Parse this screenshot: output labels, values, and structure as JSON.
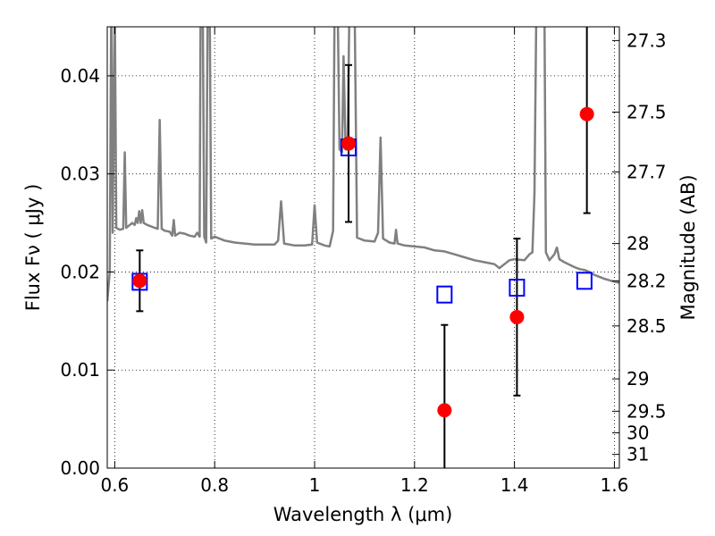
{
  "chart_data": {
    "type": "scatter",
    "xlabel": "Wavelength  λ (μm)",
    "ylabel": "Flux  Fν  ( μJy )",
    "y2label": "Magnitude (AB)",
    "xlim": [
      0.585,
      1.61
    ],
    "ylim": [
      0.0,
      0.045
    ],
    "grid": true,
    "x_ticks": [
      0.6,
      0.8,
      1.0,
      1.2,
      1.4,
      1.6
    ],
    "x_tick_labels": [
      "0.6",
      "0.8",
      "1",
      "1.2",
      "1.4",
      "1.6"
    ],
    "y_ticks": [
      0.0,
      0.01,
      0.02,
      0.03,
      0.04
    ],
    "y_tick_labels": [
      "0.00",
      "0.01",
      "0.02",
      "0.03",
      "0.04"
    ],
    "mag_ticks": [
      {
        "label": "27.3",
        "flux": 0.0436
      },
      {
        "label": "27.5",
        "flux": 0.0363
      },
      {
        "label": "27.7",
        "flux": 0.0302
      },
      {
        "label": "28",
        "flux": 0.0229
      },
      {
        "label": "28.2",
        "flux": 0.0191
      },
      {
        "label": "28.5",
        "flux": 0.0145
      },
      {
        "label": "29",
        "flux": 0.0091
      },
      {
        "label": "29.5",
        "flux": 0.0058
      },
      {
        "label": "30",
        "flux": 0.0036
      },
      {
        "label": "31",
        "flux": 0.0014
      }
    ],
    "observed": {
      "color": "#ff0000",
      "points": [
        {
          "x": 0.65,
          "y": 0.0191,
          "err": 0.0031
        },
        {
          "x": 1.068,
          "y": 0.0331,
          "err": 0.008
        },
        {
          "x": 1.26,
          "y": 0.0059,
          "err": 0.0087
        },
        {
          "x": 1.405,
          "y": 0.0154,
          "err": 0.008
        },
        {
          "x": 1.545,
          "y": 0.0361,
          "err": 0.0101
        }
      ]
    },
    "model_photometry": {
      "color": "#0000ff",
      "points": [
        {
          "x": 0.65,
          "y": 0.019
        },
        {
          "x": 1.068,
          "y": 0.0327
        },
        {
          "x": 1.26,
          "y": 0.0177
        },
        {
          "x": 1.405,
          "y": 0.0184
        },
        {
          "x": 1.54,
          "y": 0.0191
        }
      ]
    },
    "spectrum": {
      "color": "#808080",
      "points": [
        [
          0.585,
          0.017
        ],
        [
          0.59,
          0.02
        ],
        [
          0.593,
          0.048
        ],
        [
          0.596,
          0.024
        ],
        [
          0.6,
          0.048
        ],
        [
          0.603,
          0.0245
        ],
        [
          0.61,
          0.0243
        ],
        [
          0.617,
          0.0244
        ],
        [
          0.62,
          0.0322
        ],
        [
          0.623,
          0.0245
        ],
        [
          0.63,
          0.0248
        ],
        [
          0.635,
          0.025
        ],
        [
          0.64,
          0.0248
        ],
        [
          0.643,
          0.0255
        ],
        [
          0.646,
          0.025
        ],
        [
          0.649,
          0.0262
        ],
        [
          0.652,
          0.025
        ],
        [
          0.655,
          0.0263
        ],
        [
          0.658,
          0.025
        ],
        [
          0.665,
          0.0248
        ],
        [
          0.68,
          0.0245
        ],
        [
          0.686,
          0.0244
        ],
        [
          0.69,
          0.0355
        ],
        [
          0.694,
          0.0244
        ],
        [
          0.7,
          0.0242
        ],
        [
          0.71,
          0.0241
        ],
        [
          0.715,
          0.0237
        ],
        [
          0.718,
          0.0253
        ],
        [
          0.721,
          0.0237
        ],
        [
          0.73,
          0.024
        ],
        [
          0.74,
          0.0239
        ],
        [
          0.75,
          0.0237
        ],
        [
          0.76,
          0.0236
        ],
        [
          0.765,
          0.024
        ],
        [
          0.77,
          0.0236
        ],
        [
          0.772,
          0.048
        ],
        [
          0.776,
          0.048
        ],
        [
          0.779,
          0.0236
        ],
        [
          0.783,
          0.023
        ],
        [
          0.786,
          0.048
        ],
        [
          0.79,
          0.048
        ],
        [
          0.793,
          0.0234
        ],
        [
          0.8,
          0.0236
        ],
        [
          0.82,
          0.0232
        ],
        [
          0.84,
          0.023
        ],
        [
          0.86,
          0.0229
        ],
        [
          0.88,
          0.0228
        ],
        [
          0.9,
          0.0228
        ],
        [
          0.92,
          0.0228
        ],
        [
          0.927,
          0.0232
        ],
        [
          0.933,
          0.0272
        ],
        [
          0.939,
          0.0229
        ],
        [
          0.96,
          0.0227
        ],
        [
          0.98,
          0.0227
        ],
        [
          0.995,
          0.0228
        ],
        [
          1.0,
          0.0268
        ],
        [
          1.005,
          0.023
        ],
        [
          1.02,
          0.0227
        ],
        [
          1.03,
          0.0226
        ],
        [
          1.037,
          0.0242
        ],
        [
          1.04,
          0.048
        ],
        [
          1.046,
          0.048
        ],
        [
          1.05,
          0.0325
        ],
        [
          1.055,
          0.0322
        ],
        [
          1.058,
          0.042
        ],
        [
          1.062,
          0.0325
        ],
        [
          1.066,
          0.0325
        ],
        [
          1.07,
          0.048
        ],
        [
          1.08,
          0.048
        ],
        [
          1.085,
          0.0235
        ],
        [
          1.1,
          0.0232
        ],
        [
          1.12,
          0.0231
        ],
        [
          1.127,
          0.024
        ],
        [
          1.132,
          0.0337
        ],
        [
          1.137,
          0.0234
        ],
        [
          1.15,
          0.023
        ],
        [
          1.16,
          0.0229
        ],
        [
          1.163,
          0.0243
        ],
        [
          1.166,
          0.0229
        ],
        [
          1.18,
          0.0227
        ],
        [
          1.2,
          0.0226
        ],
        [
          1.22,
          0.0225
        ],
        [
          1.24,
          0.0222
        ],
        [
          1.26,
          0.0221
        ],
        [
          1.28,
          0.0218
        ],
        [
          1.3,
          0.0215
        ],
        [
          1.32,
          0.0212
        ],
        [
          1.34,
          0.021
        ],
        [
          1.36,
          0.0208
        ],
        [
          1.37,
          0.0204
        ],
        [
          1.38,
          0.0208
        ],
        [
          1.39,
          0.0212
        ],
        [
          1.4,
          0.0213
        ],
        [
          1.42,
          0.0212
        ],
        [
          1.43,
          0.0218
        ],
        [
          1.436,
          0.022
        ],
        [
          1.44,
          0.028
        ],
        [
          1.444,
          0.048
        ],
        [
          1.46,
          0.048
        ],
        [
          1.463,
          0.022
        ],
        [
          1.47,
          0.0212
        ],
        [
          1.48,
          0.0218
        ],
        [
          1.485,
          0.0225
        ],
        [
          1.49,
          0.0213
        ],
        [
          1.5,
          0.021
        ],
        [
          1.52,
          0.0205
        ],
        [
          1.53,
          0.0203
        ],
        [
          1.54,
          0.0202
        ],
        [
          1.55,
          0.02
        ],
        [
          1.56,
          0.0197
        ],
        [
          1.58,
          0.0193
        ],
        [
          1.6,
          0.019
        ],
        [
          1.61,
          0.0189
        ]
      ]
    }
  }
}
